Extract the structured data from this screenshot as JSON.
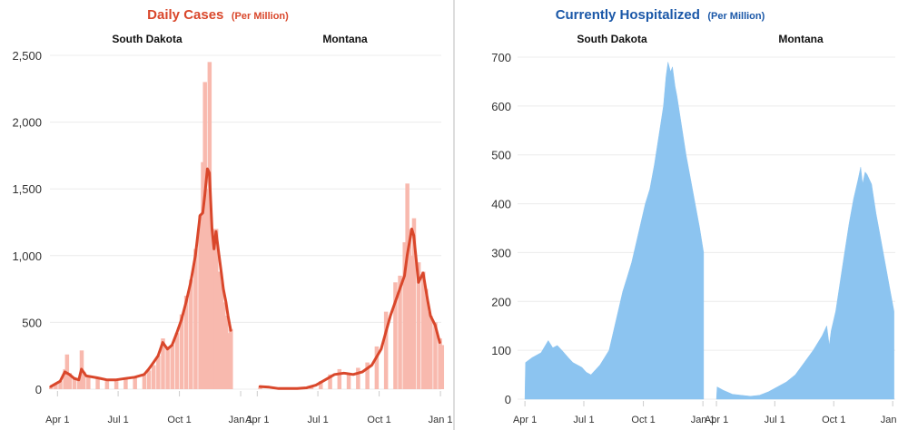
{
  "colors": {
    "cases_bar": "#f8b9ae",
    "cases_line": "#d9472b",
    "cases_title": "#d9472b",
    "hosp_bar": "#8cc4f0",
    "hosp_title": "#1b58a8",
    "divider": "#bbbbbb",
    "grid": "#ececec"
  },
  "chart_data": [
    {
      "type": "bar",
      "title": "Daily Cases",
      "title_suffix": "(Per Million)",
      "y_ticks": [
        "2,500",
        "2,000",
        "1,500",
        "1,000",
        "500",
        "0"
      ],
      "ylim": [
        0,
        2500
      ],
      "panels": [
        {
          "name": "South Dakota",
          "x_labels": [
            "Apr 1",
            "Jul 1",
            "Oct 1",
            "Jan 1"
          ],
          "x_domain": [
            "2020-03-22",
            "2021-01-05"
          ],
          "bars": [
            [
              "2020-03-22",
              20
            ],
            [
              "2020-03-29",
              40
            ],
            [
              "2020-04-05",
              60
            ],
            [
              "2020-04-12",
              150
            ],
            [
              "2020-04-15",
              260
            ],
            [
              "2020-04-19",
              120
            ],
            [
              "2020-04-26",
              90
            ],
            [
              "2020-05-03",
              70
            ],
            [
              "2020-05-07",
              290
            ],
            [
              "2020-05-10",
              130
            ],
            [
              "2020-05-17",
              90
            ],
            [
              "2020-05-31",
              80
            ],
            [
              "2020-06-14",
              70
            ],
            [
              "2020-06-28",
              75
            ],
            [
              "2020-07-12",
              80
            ],
            [
              "2020-07-26",
              90
            ],
            [
              "2020-08-09",
              110
            ],
            [
              "2020-08-16",
              140
            ],
            [
              "2020-08-23",
              180
            ],
            [
              "2020-08-30",
              250
            ],
            [
              "2020-09-06",
              380
            ],
            [
              "2020-09-13",
              320
            ],
            [
              "2020-09-20",
              330
            ],
            [
              "2020-09-27",
              420
            ],
            [
              "2020-10-04",
              560
            ],
            [
              "2020-10-11",
              700
            ],
            [
              "2020-10-18",
              820
            ],
            [
              "2020-10-25",
              1050
            ],
            [
              "2020-11-01",
              1300
            ],
            [
              "2020-11-05",
              1700
            ],
            [
              "2020-11-08",
              2300
            ],
            [
              "2020-11-12",
              1500
            ],
            [
              "2020-11-15",
              2450
            ],
            [
              "2020-11-19",
              1200
            ],
            [
              "2020-11-22",
              950
            ],
            [
              "2020-11-25",
              1200
            ],
            [
              "2020-11-29",
              880
            ],
            [
              "2020-12-03",
              800
            ],
            [
              "2020-12-06",
              650
            ],
            [
              "2020-12-10",
              550
            ],
            [
              "2020-12-13",
              420
            ],
            [
              "2020-12-17",
              450
            ]
          ],
          "line": [
            [
              "2020-03-22",
              20
            ],
            [
              "2020-04-05",
              60
            ],
            [
              "2020-04-12",
              130
            ],
            [
              "2020-04-19",
              110
            ],
            [
              "2020-04-26",
              80
            ],
            [
              "2020-05-03",
              70
            ],
            [
              "2020-05-07",
              150
            ],
            [
              "2020-05-14",
              100
            ],
            [
              "2020-05-31",
              85
            ],
            [
              "2020-06-14",
              70
            ],
            [
              "2020-06-28",
              70
            ],
            [
              "2020-07-12",
              80
            ],
            [
              "2020-07-26",
              90
            ],
            [
              "2020-08-09",
              110
            ],
            [
              "2020-08-16",
              150
            ],
            [
              "2020-08-23",
              200
            ],
            [
              "2020-08-30",
              250
            ],
            [
              "2020-09-06",
              350
            ],
            [
              "2020-09-13",
              300
            ],
            [
              "2020-09-20",
              330
            ],
            [
              "2020-09-27",
              420
            ],
            [
              "2020-10-04",
              520
            ],
            [
              "2020-10-11",
              650
            ],
            [
              "2020-10-18",
              800
            ],
            [
              "2020-10-25",
              1000
            ],
            [
              "2020-11-01",
              1300
            ],
            [
              "2020-11-05",
              1320
            ],
            [
              "2020-11-08",
              1450
            ],
            [
              "2020-11-12",
              1650
            ],
            [
              "2020-11-15",
              1620
            ],
            [
              "2020-11-19",
              1200
            ],
            [
              "2020-11-22",
              1050
            ],
            [
              "2020-11-25",
              1180
            ],
            [
              "2020-11-29",
              1020
            ],
            [
              "2020-12-03",
              870
            ],
            [
              "2020-12-06",
              750
            ],
            [
              "2020-12-10",
              650
            ],
            [
              "2020-12-13",
              550
            ],
            [
              "2020-12-17",
              440
            ]
          ]
        },
        {
          "name": "Montana",
          "x_labels": [
            "Apr 1",
            "Jul 1",
            "Oct 1",
            "Jan 1"
          ],
          "x_domain": [
            "2020-03-22",
            "2021-01-05"
          ],
          "bars": [
            [
              "2020-04-05",
              15
            ],
            [
              "2020-04-26",
              10
            ],
            [
              "2020-05-17",
              5
            ],
            [
              "2020-06-07",
              10
            ],
            [
              "2020-06-21",
              25
            ],
            [
              "2020-07-05",
              60
            ],
            [
              "2020-07-19",
              110
            ],
            [
              "2020-08-02",
              150
            ],
            [
              "2020-08-16",
              120
            ],
            [
              "2020-08-30",
              160
            ],
            [
              "2020-09-13",
              200
            ],
            [
              "2020-09-27",
              320
            ],
            [
              "2020-10-11",
              580
            ],
            [
              "2020-10-25",
              800
            ],
            [
              "2020-11-01",
              850
            ],
            [
              "2020-11-08",
              1100
            ],
            [
              "2020-11-12",
              1540
            ],
            [
              "2020-11-15",
              1200
            ],
            [
              "2020-11-19",
              1000
            ],
            [
              "2020-11-22",
              1280
            ],
            [
              "2020-11-29",
              950
            ],
            [
              "2020-12-06",
              880
            ],
            [
              "2020-12-10",
              750
            ],
            [
              "2020-12-13",
              580
            ],
            [
              "2020-12-17",
              550
            ],
            [
              "2020-12-24",
              500
            ],
            [
              "2020-12-31",
              380
            ],
            [
              "2021-01-03",
              330
            ]
          ],
          "line": [
            [
              "2020-04-05",
              20
            ],
            [
              "2020-04-19",
              15
            ],
            [
              "2020-05-03",
              5
            ],
            [
              "2020-05-31",
              5
            ],
            [
              "2020-06-14",
              10
            ],
            [
              "2020-06-28",
              30
            ],
            [
              "2020-07-12",
              70
            ],
            [
              "2020-07-26",
              110
            ],
            [
              "2020-08-09",
              120
            ],
            [
              "2020-08-23",
              110
            ],
            [
              "2020-09-06",
              130
            ],
            [
              "2020-09-20",
              180
            ],
            [
              "2020-10-04",
              300
            ],
            [
              "2020-10-18",
              550
            ],
            [
              "2020-11-01",
              750
            ],
            [
              "2020-11-08",
              850
            ],
            [
              "2020-11-12",
              1000
            ],
            [
              "2020-11-19",
              1200
            ],
            [
              "2020-11-22",
              1150
            ],
            [
              "2020-11-29",
              800
            ],
            [
              "2020-12-06",
              870
            ],
            [
              "2020-12-10",
              750
            ],
            [
              "2020-12-13",
              660
            ],
            [
              "2020-12-17",
              550
            ],
            [
              "2020-12-24",
              480
            ],
            [
              "2020-12-31",
              350
            ]
          ]
        }
      ]
    },
    {
      "type": "area",
      "title": "Currently Hospitalized",
      "title_suffix": "(Per Million)",
      "y_ticks": [
        "700",
        "600",
        "500",
        "400",
        "300",
        "200",
        "100",
        "0"
      ],
      "ylim": [
        0,
        700
      ],
      "panels": [
        {
          "name": "South Dakota",
          "x_labels": [
            "Apr 1",
            "Jul 1",
            "Oct 1",
            "Jan 1"
          ],
          "x_domain": [
            "2020-03-22",
            "2021-01-05"
          ],
          "values": [
            [
              "2020-04-01",
              0
            ],
            [
              "2020-04-02",
              75
            ],
            [
              "2020-04-12",
              85
            ],
            [
              "2020-04-26",
              95
            ],
            [
              "2020-05-07",
              120
            ],
            [
              "2020-05-14",
              105
            ],
            [
              "2020-05-21",
              110
            ],
            [
              "2020-05-28",
              100
            ],
            [
              "2020-06-07",
              85
            ],
            [
              "2020-06-14",
              75
            ],
            [
              "2020-06-21",
              70
            ],
            [
              "2020-06-28",
              65
            ],
            [
              "2020-07-05",
              55
            ],
            [
              "2020-07-12",
              50
            ],
            [
              "2020-07-19",
              60
            ],
            [
              "2020-07-26",
              70
            ],
            [
              "2020-08-02",
              85
            ],
            [
              "2020-08-09",
              100
            ],
            [
              "2020-08-16",
              140
            ],
            [
              "2020-08-23",
              180
            ],
            [
              "2020-08-30",
              220
            ],
            [
              "2020-09-06",
              250
            ],
            [
              "2020-09-13",
              280
            ],
            [
              "2020-09-20",
              320
            ],
            [
              "2020-09-27",
              360
            ],
            [
              "2020-10-04",
              400
            ],
            [
              "2020-10-11",
              430
            ],
            [
              "2020-10-18",
              480
            ],
            [
              "2020-10-25",
              540
            ],
            [
              "2020-11-01",
              600
            ],
            [
              "2020-11-05",
              660
            ],
            [
              "2020-11-08",
              690
            ],
            [
              "2020-11-12",
              670
            ],
            [
              "2020-11-15",
              680
            ],
            [
              "2020-11-19",
              640
            ],
            [
              "2020-11-22",
              620
            ],
            [
              "2020-11-29",
              560
            ],
            [
              "2020-12-06",
              500
            ],
            [
              "2020-12-13",
              450
            ],
            [
              "2020-12-20",
              400
            ],
            [
              "2020-12-27",
              350
            ],
            [
              "2021-01-02",
              300
            ],
            [
              "2021-01-02",
              0
            ]
          ]
        },
        {
          "name": "Montana",
          "x_labels": [
            "Apr 1",
            "Jul 1",
            "Oct 1",
            "Jan 1"
          ],
          "x_domain": [
            "2020-03-22",
            "2021-01-05"
          ],
          "values": [
            [
              "2020-04-01",
              0
            ],
            [
              "2020-04-02",
              25
            ],
            [
              "2020-04-12",
              18
            ],
            [
              "2020-04-26",
              10
            ],
            [
              "2020-05-10",
              8
            ],
            [
              "2020-05-24",
              6
            ],
            [
              "2020-06-07",
              8
            ],
            [
              "2020-06-21",
              15
            ],
            [
              "2020-07-05",
              25
            ],
            [
              "2020-07-19",
              35
            ],
            [
              "2020-08-02",
              50
            ],
            [
              "2020-08-16",
              75
            ],
            [
              "2020-08-30",
              100
            ],
            [
              "2020-09-13",
              130
            ],
            [
              "2020-09-20",
              150
            ],
            [
              "2020-09-24",
              110
            ],
            [
              "2020-09-27",
              140
            ],
            [
              "2020-10-04",
              180
            ],
            [
              "2020-10-11",
              240
            ],
            [
              "2020-10-18",
              300
            ],
            [
              "2020-10-25",
              360
            ],
            [
              "2020-11-01",
              410
            ],
            [
              "2020-11-08",
              450
            ],
            [
              "2020-11-12",
              475
            ],
            [
              "2020-11-15",
              440
            ],
            [
              "2020-11-19",
              465
            ],
            [
              "2020-11-22",
              460
            ],
            [
              "2020-11-29",
              440
            ],
            [
              "2020-12-06",
              380
            ],
            [
              "2020-12-13",
              330
            ],
            [
              "2020-12-20",
              280
            ],
            [
              "2020-12-27",
              230
            ],
            [
              "2021-01-03",
              180
            ],
            [
              "2021-01-03",
              0
            ]
          ]
        }
      ]
    }
  ]
}
